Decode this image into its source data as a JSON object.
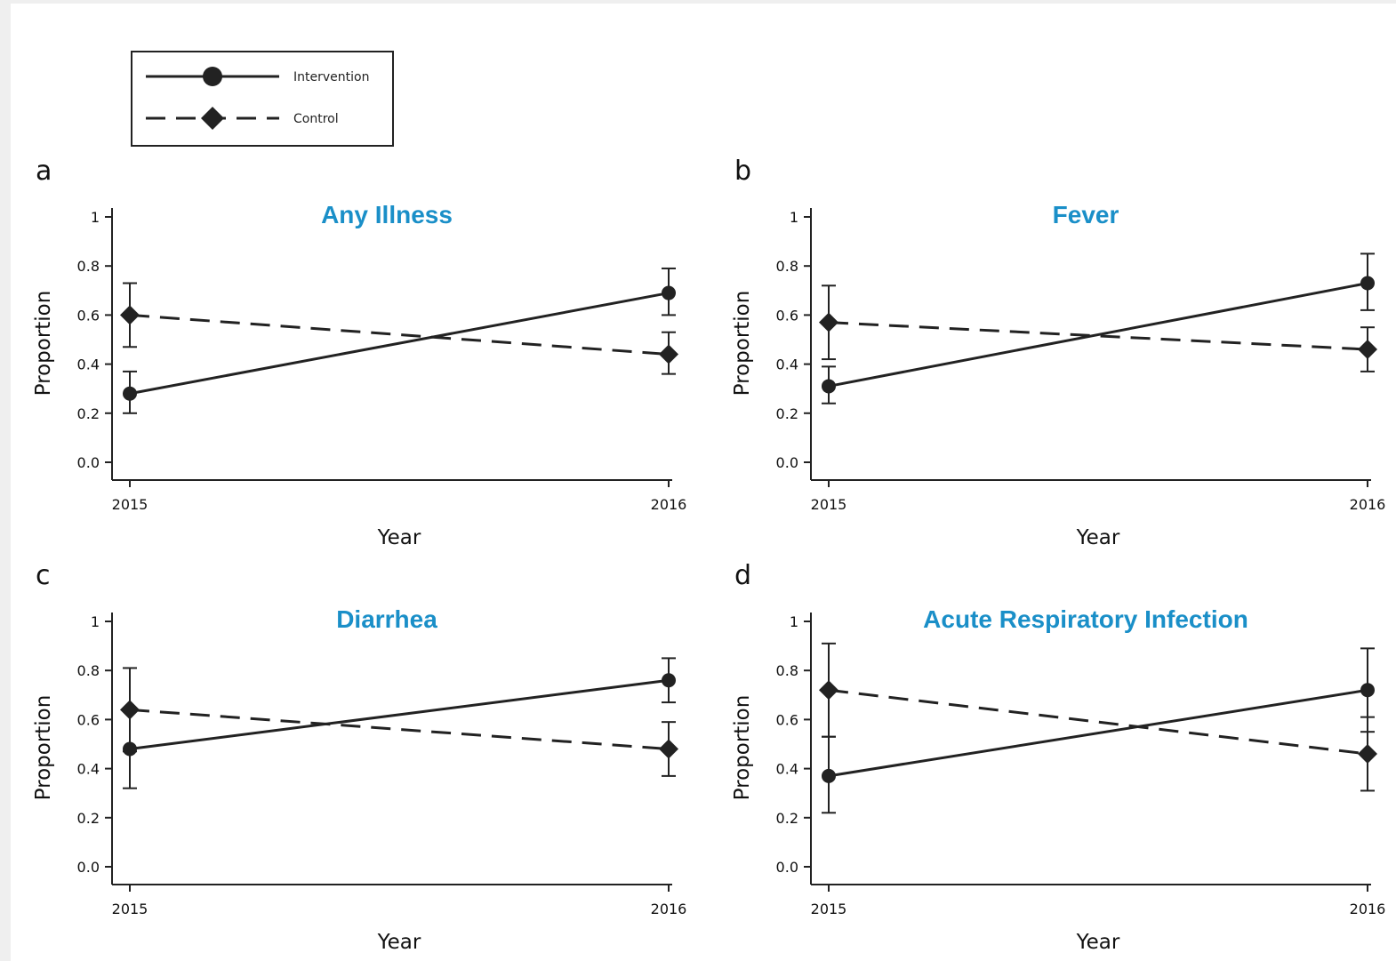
{
  "legend": {
    "entries": [
      {
        "label": "Intervention",
        "line": "solid",
        "marker": "circle"
      },
      {
        "label": "Control",
        "line": "dashed",
        "marker": "diamond"
      }
    ]
  },
  "chart_data": [
    {
      "panel": "a",
      "type": "line",
      "title": "Any Illness",
      "xlabel": "Year",
      "ylabel": "Proportion",
      "x": [
        "2015",
        "2016"
      ],
      "ylim": [
        0,
        1
      ],
      "yticks": [
        "0.0",
        "0.2",
        "0.4",
        "0.6",
        "0.8",
        "1"
      ],
      "series": [
        {
          "name": "Intervention",
          "values": [
            0.28,
            0.69
          ],
          "lower": [
            0.2,
            0.6
          ],
          "upper": [
            0.37,
            0.79
          ]
        },
        {
          "name": "Control",
          "values": [
            0.6,
            0.44
          ],
          "lower": [
            0.47,
            0.36
          ],
          "upper": [
            0.73,
            0.53
          ]
        }
      ]
    },
    {
      "panel": "b",
      "type": "line",
      "title": "Fever",
      "xlabel": "Year",
      "ylabel": "Proportion",
      "x": [
        "2015",
        "2016"
      ],
      "ylim": [
        0,
        1
      ],
      "yticks": [
        "0.0",
        "0.2",
        "0.4",
        "0.6",
        "0.8",
        "1"
      ],
      "series": [
        {
          "name": "Intervention",
          "values": [
            0.31,
            0.73
          ],
          "lower": [
            0.24,
            0.62
          ],
          "upper": [
            0.39,
            0.85
          ]
        },
        {
          "name": "Control",
          "values": [
            0.57,
            0.46
          ],
          "lower": [
            0.42,
            0.37
          ],
          "upper": [
            0.72,
            0.55
          ]
        }
      ]
    },
    {
      "panel": "c",
      "type": "line",
      "title": "Diarrhea",
      "xlabel": "Year",
      "ylabel": "Proportion",
      "x": [
        "2015",
        "2016"
      ],
      "ylim": [
        0,
        1
      ],
      "yticks": [
        "0.0",
        "0.2",
        "0.4",
        "0.6",
        "0.8",
        "1"
      ],
      "series": [
        {
          "name": "Intervention",
          "values": [
            0.48,
            0.76
          ],
          "lower": [
            0.32,
            0.67
          ],
          "upper": [
            0.64,
            0.85
          ]
        },
        {
          "name": "Control",
          "values": [
            0.64,
            0.48
          ],
          "lower": [
            0.47,
            0.37
          ],
          "upper": [
            0.81,
            0.59
          ]
        }
      ]
    },
    {
      "panel": "d",
      "type": "line",
      "title": "Acute Respiratory Infection",
      "xlabel": "Year",
      "ylabel": "Proportion",
      "x": [
        "2015",
        "2016"
      ],
      "ylim": [
        0,
        1
      ],
      "yticks": [
        "0.0",
        "0.2",
        "0.4",
        "0.6",
        "0.8",
        "1"
      ],
      "series": [
        {
          "name": "Intervention",
          "values": [
            0.37,
            0.72
          ],
          "lower": [
            0.22,
            0.55
          ],
          "upper": [
            0.53,
            0.89
          ]
        },
        {
          "name": "Control",
          "values": [
            0.72,
            0.46
          ],
          "lower": [
            0.53,
            0.31
          ],
          "upper": [
            0.91,
            0.61
          ]
        }
      ]
    }
  ]
}
